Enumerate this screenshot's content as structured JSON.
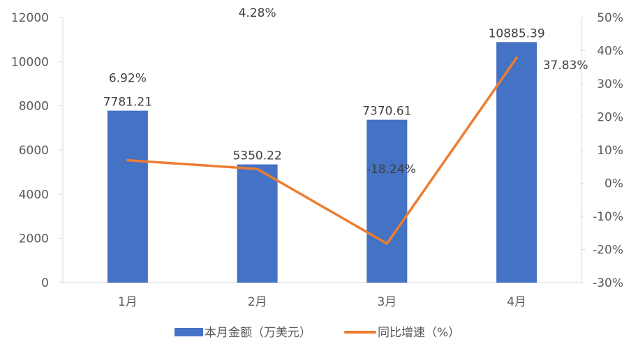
{
  "chart_data": {
    "type": "bar+line",
    "categories": [
      "1月",
      "2月",
      "3月",
      "4月"
    ],
    "series": [
      {
        "name": "本月金额（万美元）",
        "type": "bar",
        "axis": "left",
        "color": "#4472C4",
        "values": [
          7781.21,
          5350.22,
          7370.61,
          10885.39
        ],
        "labels": [
          "7781.21",
          "5350.22",
          "7370.61",
          "10885.39"
        ]
      },
      {
        "name": "同比增速（%）",
        "type": "line",
        "axis": "right",
        "color": "#ED7D31",
        "values": [
          6.92,
          4.28,
          -18.24,
          37.83
        ],
        "labels": [
          "6.92%",
          "4.28%",
          "-18.24%",
          "37.83%"
        ]
      }
    ],
    "left_axis": {
      "range": [
        0,
        12000
      ],
      "ticks": [
        "0",
        "2000",
        "4000",
        "6000",
        "8000",
        "10000",
        "12000"
      ]
    },
    "right_axis": {
      "range": [
        -30,
        50
      ],
      "ticks": [
        "-30%",
        "-20%",
        "-10%",
        "0%",
        "10%",
        "20%",
        "30%",
        "40%",
        "50%"
      ]
    },
    "grid": false,
    "legend": "bottom"
  }
}
